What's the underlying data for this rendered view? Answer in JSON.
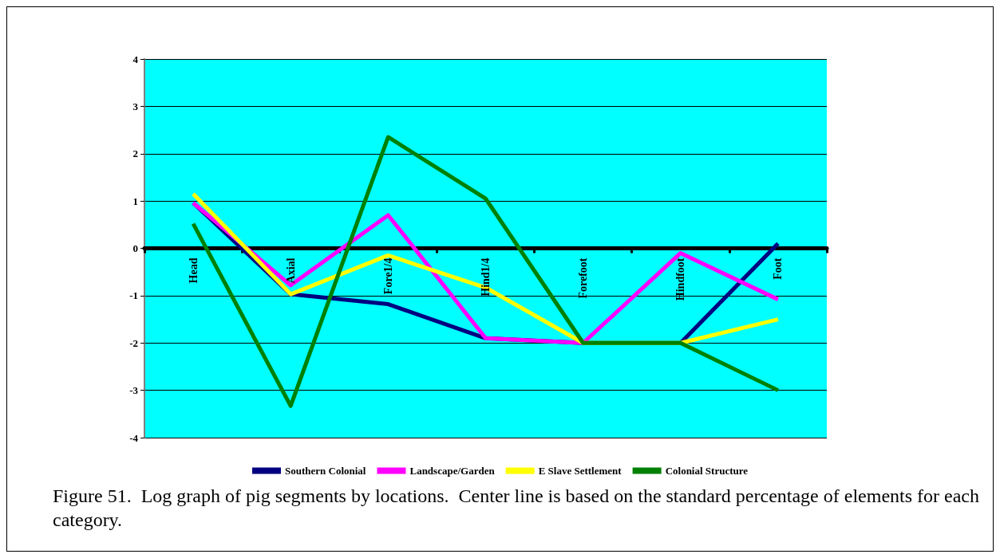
{
  "chart_data": {
    "type": "line",
    "categories": [
      "Head",
      "Axial",
      "Fore1/4",
      "Hind1/4",
      "Forefoot",
      "Hindfoot",
      "Foot"
    ],
    "series": [
      {
        "name": "Southern Colonial",
        "color": "#000080",
        "values": [
          0.96,
          -0.97,
          -1.18,
          -1.9,
          -2.0,
          -2.0,
          0.1
        ]
      },
      {
        "name": "Landscape/Garden",
        "color": "#ff00ff",
        "values": [
          0.96,
          -0.78,
          0.7,
          -1.9,
          -2.0,
          -0.1,
          -1.08
        ]
      },
      {
        "name": "E Slave Settlement",
        "color": "#ffff00",
        "values": [
          1.15,
          -0.97,
          -0.15,
          -0.83,
          -2.0,
          -2.0,
          -1.5
        ]
      },
      {
        "name": "Colonial Structure",
        "color": "#008000",
        "values": [
          0.52,
          -3.33,
          2.35,
          1.05,
          -2.0,
          -2.0,
          -3.0
        ]
      }
    ],
    "ylim": [
      -4,
      4
    ],
    "yticks": [
      -4,
      -3,
      -2,
      -1,
      0,
      1,
      2,
      3,
      4
    ],
    "grid": "y",
    "legend": "bottom",
    "marker": "none",
    "annotations": [
      "Figure 51.  Log graph of pig segments by locations.  Center line is based on the standard percentage of elements for each category."
    ]
  }
}
